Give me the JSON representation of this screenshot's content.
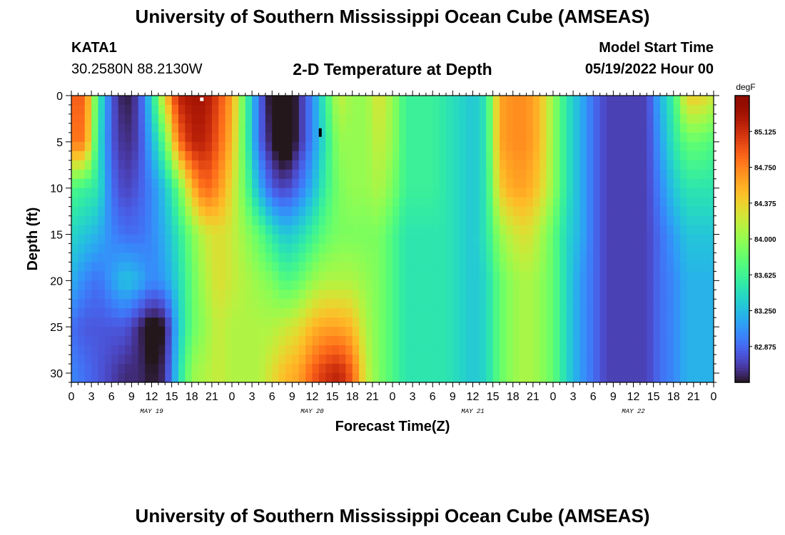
{
  "header": {
    "title": "University of Southern Mississippi Ocean Cube (AMSEAS)",
    "station": "KATA1",
    "coordinates": "30.2580N  88.2130W",
    "subtitle": "2-D Temperature at Depth",
    "model_start_label": "Model Start Time",
    "model_start_value": "05/19/2022 Hour 00"
  },
  "footer": {
    "title": "University of Southern Mississippi Ocean Cube (AMSEAS)"
  },
  "chart_data": {
    "type": "heatmap",
    "title": "2-D Temperature at Depth",
    "xlabel": "Forecast Time(Z)",
    "ylabel": "Depth (ft)",
    "x_range_hours": [
      0,
      96
    ],
    "ylim": [
      0,
      31
    ],
    "y_ticks": [
      "0",
      "5",
      "10",
      "15",
      "20",
      "25",
      "30"
    ],
    "y_tick_values": [
      0,
      5,
      10,
      15,
      20,
      25,
      30
    ],
    "x_tick_labels": [
      "0",
      "3",
      "6",
      "9",
      "12",
      "15",
      "18",
      "21",
      "0",
      "3",
      "6",
      "9",
      "12",
      "15",
      "18",
      "21",
      "0",
      "3",
      "6",
      "9",
      "12",
      "15",
      "18",
      "21",
      "0",
      "3",
      "6",
      "9",
      "12",
      "15",
      "18",
      "21",
      "0"
    ],
    "day_labels": [
      "MAY 19",
      "MAY 20",
      "MAY 21",
      "MAY 22"
    ],
    "day_label_hours": [
      12,
      36,
      60,
      84
    ],
    "colorbar": {
      "unit": "degF",
      "range": [
        82.5,
        85.5
      ],
      "ticks": [
        "85.125",
        "84.750",
        "84.375",
        "84.000",
        "83.625",
        "83.250",
        "82.875"
      ],
      "tick_values": [
        85.125,
        84.75,
        84.375,
        84.0,
        83.625,
        83.25,
        82.875
      ]
    },
    "grid_hours": [
      0,
      2,
      4,
      6,
      8,
      10,
      12,
      14,
      16,
      18,
      20,
      22,
      24,
      26,
      28,
      30,
      32,
      34,
      36,
      38,
      40,
      42,
      44,
      46,
      48,
      50,
      52,
      54,
      56,
      58,
      60,
      62,
      64,
      66,
      68,
      70,
      72,
      74,
      76,
      78,
      80,
      82,
      84,
      86,
      88,
      90,
      92,
      94,
      96
    ],
    "grid_depths_ft": [
      0,
      5,
      10,
      15,
      20,
      25,
      30
    ],
    "temperature_degF": [
      [
        84.9,
        84.9,
        83.6,
        82.8,
        82.5,
        82.7,
        83.4,
        84.4,
        85.2,
        85.3,
        85.3,
        85.0,
        84.6,
        83.7,
        82.9,
        82.4,
        82.3,
        82.6,
        83.0,
        83.6,
        84.2,
        84.0,
        84.0,
        84.3,
        84.0,
        83.6,
        83.6,
        83.6,
        83.5,
        83.4,
        83.3,
        83.5,
        84.6,
        84.7,
        84.7,
        84.5,
        84.0,
        83.5,
        83.2,
        82.9,
        82.7,
        82.7,
        82.7,
        82.7,
        83.2,
        83.6,
        84.4,
        84.4,
        84.2
      ],
      [
        84.8,
        84.8,
        83.5,
        82.8,
        82.6,
        82.7,
        83.2,
        83.8,
        84.8,
        85.2,
        85.2,
        84.9,
        84.5,
        83.7,
        82.9,
        82.5,
        82.3,
        82.6,
        83.0,
        83.5,
        84.0,
        84.0,
        84.0,
        84.2,
        84.0,
        83.6,
        83.6,
        83.6,
        83.5,
        83.4,
        83.3,
        83.5,
        84.6,
        84.7,
        84.7,
        84.5,
        84.0,
        83.5,
        83.2,
        82.9,
        82.7,
        82.7,
        82.7,
        82.7,
        83.1,
        83.5,
        83.8,
        83.8,
        83.7
      ],
      [
        83.7,
        83.6,
        83.5,
        82.9,
        82.7,
        82.8,
        83.0,
        83.3,
        83.8,
        84.5,
        84.9,
        84.7,
        84.3,
        83.8,
        83.2,
        82.8,
        82.7,
        82.9,
        83.2,
        83.6,
        83.9,
        84.0,
        84.0,
        84.1,
        83.9,
        83.6,
        83.6,
        83.6,
        83.5,
        83.4,
        83.3,
        83.5,
        84.4,
        84.6,
        84.6,
        84.4,
        84.0,
        83.5,
        83.2,
        82.9,
        82.7,
        82.7,
        82.7,
        82.7,
        83.0,
        83.3,
        83.5,
        83.5,
        83.5
      ],
      [
        83.4,
        83.3,
        83.2,
        83.0,
        82.9,
        82.9,
        83.0,
        83.2,
        83.5,
        83.9,
        84.2,
        84.3,
        84.2,
        84.0,
        83.8,
        83.5,
        83.3,
        83.4,
        83.6,
        83.8,
        83.9,
        83.9,
        83.9,
        83.9,
        83.7,
        83.5,
        83.5,
        83.5,
        83.5,
        83.4,
        83.3,
        83.5,
        84.0,
        84.2,
        84.3,
        84.1,
        83.8,
        83.4,
        83.2,
        82.9,
        82.7,
        82.7,
        82.7,
        82.7,
        82.9,
        83.1,
        83.3,
        83.3,
        83.3
      ],
      [
        83.2,
        83.0,
        82.9,
        83.1,
        83.3,
        83.2,
        83.0,
        83.1,
        83.4,
        83.8,
        84.1,
        84.3,
        84.2,
        84.1,
        84.0,
        83.9,
        83.7,
        83.8,
        84.0,
        84.1,
        84.1,
        84.1,
        84.0,
        83.9,
        83.7,
        83.5,
        83.5,
        83.5,
        83.5,
        83.4,
        83.3,
        83.4,
        83.8,
        84.0,
        84.1,
        84.0,
        83.8,
        83.4,
        83.1,
        82.9,
        82.7,
        82.7,
        82.7,
        82.7,
        82.9,
        83.0,
        83.2,
        83.2,
        83.2
      ],
      [
        82.9,
        82.8,
        82.8,
        82.8,
        82.8,
        82.6,
        82.4,
        82.5,
        83.3,
        83.8,
        84.0,
        84.2,
        84.1,
        84.1,
        84.1,
        84.1,
        84.2,
        84.3,
        84.5,
        84.6,
        84.6,
        84.5,
        84.1,
        83.9,
        83.7,
        83.5,
        83.5,
        83.5,
        83.5,
        83.4,
        83.3,
        83.4,
        83.8,
        84.0,
        84.1,
        84.0,
        83.8,
        83.4,
        83.1,
        82.9,
        82.7,
        82.7,
        82.7,
        82.7,
        82.9,
        83.0,
        83.2,
        83.2,
        83.2
      ],
      [
        83.0,
        82.9,
        82.8,
        82.7,
        82.6,
        82.6,
        82.5,
        82.6,
        83.4,
        84.0,
        84.1,
        84.2,
        84.1,
        84.1,
        84.1,
        84.3,
        84.5,
        84.6,
        84.9,
        85.1,
        85.2,
        84.9,
        84.2,
        83.9,
        83.7,
        83.5,
        83.5,
        83.5,
        83.5,
        83.4,
        83.3,
        83.4,
        83.8,
        84.0,
        84.1,
        84.0,
        83.8,
        83.4,
        83.1,
        82.9,
        82.7,
        82.7,
        82.7,
        82.7,
        82.9,
        83.0,
        83.2,
        83.2,
        83.2
      ]
    ],
    "markers": [
      {
        "label": "white-marker",
        "hour": 19.5,
        "depth_ft": 0.4
      },
      {
        "label": "black-marker",
        "hour": 37.2,
        "depth_ft": 4.0
      }
    ]
  }
}
